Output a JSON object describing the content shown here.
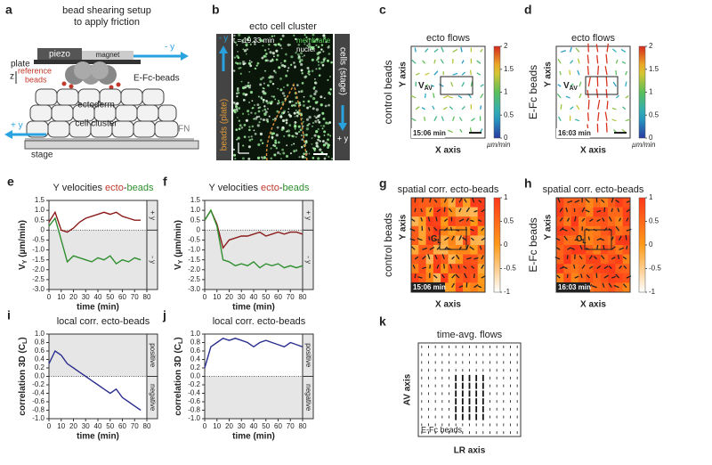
{
  "panel_a": {
    "letter": "a",
    "title": [
      "bead shearing setup",
      "to apply friction"
    ],
    "piezo": "piezo",
    "magnet": "magnet",
    "minus_y": "- y",
    "plate": "plate",
    "z": "z",
    "reference_beads": [
      "reference",
      "beads"
    ],
    "efc_beads": "E-Fc-beads",
    "ectoderm": "ectoderm",
    "cell_cluster": "cell cluster",
    "fn": "FN",
    "plus_y": "+ y",
    "stage": "stage"
  },
  "panel_b": {
    "letter": "b",
    "title": "ecto cell cluster",
    "time": "t = 19.33 min",
    "membrane": "membrane",
    "nuclei": "nuclei",
    "minus_y": "- y",
    "left_bar": "beads (plate)",
    "right_bar": "cells (stage)",
    "plus_y": "+ y"
  },
  "flow_panels": [
    {
      "letter": "c",
      "title": "ecto flows",
      "condition": "control beads",
      "y_axis": "Y axis",
      "x_axis": "X axis",
      "vav": {
        "main": "V",
        "sub": "AV"
      },
      "time": "15:06 min",
      "colorbar": {
        "lim": [
          0,
          2
        ],
        "ticks": [
          0,
          0.5,
          1,
          1.5,
          2
        ],
        "unit": "µm/min"
      }
    },
    {
      "letter": "d",
      "title": "ecto flows",
      "condition": "E-Fc beads",
      "y_axis": "Y axis",
      "x_axis": "X axis",
      "vav": {
        "main": "V",
        "sub": "AV"
      },
      "time": "16:03 min",
      "colorbar": {
        "lim": [
          0,
          2
        ],
        "ticks": [
          0,
          0.5,
          1,
          1.5,
          2
        ],
        "unit": "µm/min"
      }
    }
  ],
  "corr_panels": [
    {
      "letter": "g",
      "title": "spatial corr. ecto-beads",
      "condition": "control beads",
      "y_axis": "Y axis",
      "x_axis": "X axis",
      "cl": {
        "main": "C",
        "sub": "L"
      },
      "time": "15:06 min",
      "colorbar": {
        "lim": [
          -1,
          1
        ],
        "ticks": [
          1,
          0.5,
          0,
          -0.5,
          -1
        ]
      }
    },
    {
      "letter": "h",
      "title": "spatial corr. ecto-beads",
      "condition": "E-Fc beads",
      "y_axis": "Y axis",
      "x_axis": "X axis",
      "cl": {
        "main": "C",
        "sub": "L"
      },
      "time": "16:03 min",
      "colorbar": {
        "lim": [
          -1,
          1
        ],
        "ticks": [
          1,
          0.5,
          0,
          -0.5,
          -1
        ]
      }
    }
  ],
  "panel_k": {
    "letter": "k",
    "title": "time-avg. flows",
    "y_axis": "AV axis",
    "x_axis": "LR axis",
    "inset": "E-Fc beads"
  },
  "chart_data": [
    {
      "type": "line",
      "letter": "e",
      "title": [
        "Y velocities ",
        "ecto",
        "-",
        "beads"
      ],
      "ylabel": {
        "main": "V",
        "sub": "Y",
        "rest": " (µm/min)"
      },
      "xlabel": "time (min)",
      "side_labels": [
        "+ y",
        "- y"
      ],
      "shade": "below",
      "x": [
        0,
        5,
        10,
        15,
        20,
        25,
        30,
        35,
        40,
        45,
        50,
        55,
        60,
        65,
        70,
        75
      ],
      "series": [
        {
          "color": "#8b1c1c",
          "values": [
            0.4,
            0.9,
            0.0,
            -0.1,
            0.1,
            0.4,
            0.6,
            0.7,
            0.8,
            0.9,
            0.8,
            0.9,
            0.7,
            0.6,
            0.5,
            0.5
          ]
        },
        {
          "color": "#2f8f2f",
          "values": [
            0.2,
            0.6,
            -0.5,
            -1.6,
            -1.3,
            -1.4,
            -1.5,
            -1.6,
            -1.4,
            -1.5,
            -1.3,
            -1.7,
            -1.5,
            -1.6,
            -1.4,
            -1.5
          ]
        }
      ],
      "xlim": [
        0,
        80
      ],
      "xticks": [
        0,
        10,
        20,
        30,
        40,
        50,
        60,
        70,
        80
      ],
      "ylim": [
        -3,
        1.5
      ],
      "yticks": [
        {
          "value": 1.5,
          "label": "1.5"
        },
        {
          "value": 1,
          "label": "1.0"
        },
        {
          "value": 0.5,
          "label": "0.5"
        },
        0,
        {
          "value": -0.5,
          "label": "-0.5"
        },
        {
          "value": -1,
          "label": "-1.0"
        },
        {
          "value": -1.5,
          "label": "-1.5"
        },
        {
          "value": -2,
          "label": "-2.0"
        },
        {
          "value": -2.5,
          "label": "-2.5"
        },
        {
          "value": -3,
          "label": "-3.0"
        }
      ]
    },
    {
      "type": "line",
      "letter": "f",
      "title": [
        "Y velocities ",
        "ecto",
        "-",
        "beads"
      ],
      "ylabel": {
        "main": "V",
        "sub": "Y",
        "rest": " (µm/min)"
      },
      "xlabel": "time (min)",
      "side_labels": [
        "+ y",
        "- y"
      ],
      "shade": "below",
      "x": [
        0,
        5,
        10,
        15,
        20,
        25,
        30,
        35,
        40,
        45,
        50,
        55,
        60,
        65,
        70,
        75,
        80
      ],
      "series": [
        {
          "color": "#8b1c1c",
          "values": [
            0.5,
            1.0,
            0.3,
            -0.9,
            -0.5,
            -0.4,
            -0.3,
            -0.3,
            -0.2,
            -0.1,
            -0.3,
            -0.2,
            -0.1,
            -0.2,
            -0.1,
            -0.1,
            -0.2
          ]
        },
        {
          "color": "#2f8f2f",
          "values": [
            0.5,
            1.0,
            0.2,
            -1.5,
            -1.6,
            -1.8,
            -1.7,
            -1.8,
            -1.6,
            -1.9,
            -1.7,
            -1.8,
            -1.7,
            -1.9,
            -1.8,
            -1.9,
            -1.8
          ]
        }
      ],
      "xlim": [
        0,
        80
      ],
      "xticks": [
        0,
        10,
        20,
        30,
        40,
        50,
        60,
        70,
        80
      ],
      "ylim": [
        -3,
        1.5
      ],
      "yticks": [
        {
          "value": 1.5,
          "label": "1.5"
        },
        {
          "value": 1,
          "label": "1.0"
        },
        {
          "value": 0.5,
          "label": "0.5"
        },
        0,
        {
          "value": -0.5,
          "label": "-0.5"
        },
        {
          "value": -1,
          "label": "-1.0"
        },
        {
          "value": -1.5,
          "label": "-1.5"
        },
        {
          "value": -2,
          "label": "-2.0"
        },
        {
          "value": -2.5,
          "label": "-2.5"
        },
        {
          "value": -3,
          "label": "-3.0"
        }
      ]
    },
    {
      "type": "line",
      "letter": "i",
      "title": [
        "local corr. ecto-beads"
      ],
      "ylabel": {
        "main": "correlation 3D (C",
        "sub": "L",
        "rest": ")"
      },
      "xlabel": "time (min)",
      "side_labels": [
        "positive",
        "negative"
      ],
      "shade": "above",
      "x": [
        0,
        5,
        10,
        15,
        20,
        25,
        30,
        35,
        40,
        45,
        50,
        55,
        60,
        65,
        70,
        75
      ],
      "series": [
        {
          "color": "#2b2f8f",
          "values": [
            0.3,
            0.6,
            0.5,
            0.3,
            0.2,
            0.1,
            0.0,
            -0.1,
            -0.2,
            -0.3,
            -0.4,
            -0.3,
            -0.5,
            -0.6,
            -0.7,
            -0.8
          ]
        }
      ],
      "xlim": [
        0,
        80
      ],
      "xticks": [
        0,
        10,
        20,
        30,
        40,
        50,
        60,
        70,
        80
      ],
      "ylim": [
        -1,
        1
      ],
      "yticks": [
        {
          "value": 1,
          "label": "1.0"
        },
        0.8,
        0.6,
        0.4,
        0.2,
        {
          "value": 0,
          "label": "0.0"
        },
        -0.2,
        -0.4,
        -0.6,
        -0.8,
        {
          "value": -1,
          "label": "-1.0"
        }
      ]
    },
    {
      "type": "line",
      "letter": "j",
      "title": [
        "local corr. ecto-beads"
      ],
      "ylabel": {
        "main": "correlation 3D (C",
        "sub": "L",
        "rest": ")"
      },
      "xlabel": "time (min)",
      "side_labels": [
        "positive",
        "negative"
      ],
      "shade": "below",
      "x": [
        0,
        5,
        10,
        15,
        20,
        25,
        30,
        35,
        40,
        45,
        50,
        55,
        60,
        65,
        70,
        75,
        80
      ],
      "series": [
        {
          "color": "#2b2f8f",
          "values": [
            0.2,
            0.7,
            0.8,
            0.9,
            0.85,
            0.9,
            0.85,
            0.8,
            0.7,
            0.8,
            0.85,
            0.8,
            0.75,
            0.7,
            0.8,
            0.75,
            0.7
          ]
        }
      ],
      "xlim": [
        0,
        80
      ],
      "xticks": [
        0,
        10,
        20,
        30,
        40,
        50,
        60,
        70,
        80
      ],
      "ylim": [
        -1,
        1
      ],
      "yticks": [
        {
          "value": 1,
          "label": "1.0"
        },
        0.8,
        0.6,
        0.4,
        0.2,
        {
          "value": 0,
          "label": "0.0"
        },
        -0.2,
        -0.4,
        -0.6,
        -0.8,
        {
          "value": -1,
          "label": "-1.0"
        }
      ]
    }
  ]
}
